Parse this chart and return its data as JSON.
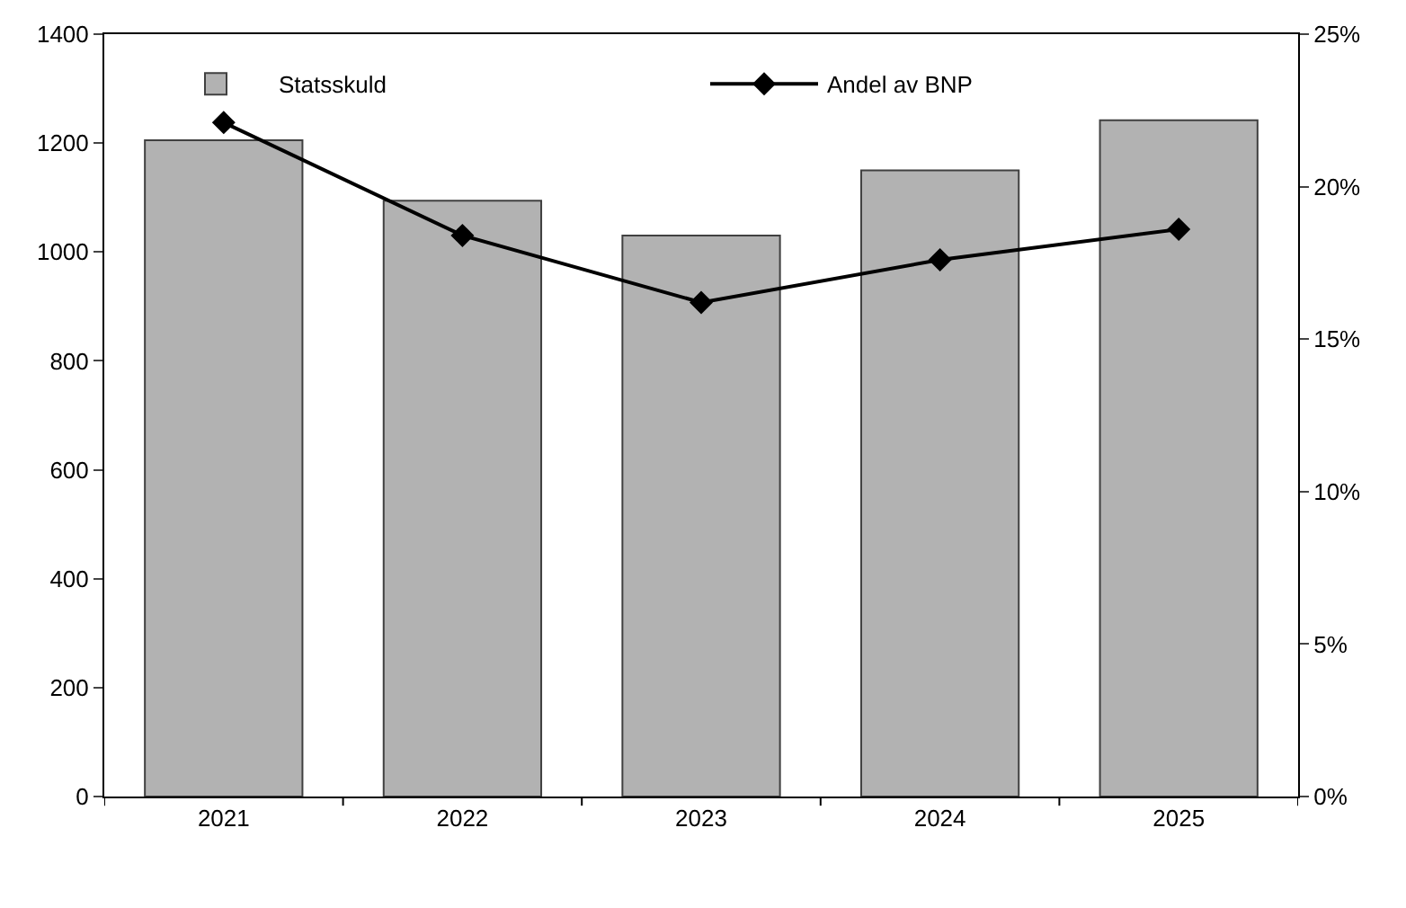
{
  "chart_data": {
    "type": "bar",
    "categories": [
      "2021",
      "2022",
      "2023",
      "2024",
      "2025"
    ],
    "series": [
      {
        "name": "Statsskuld",
        "color": "#b2b2b2",
        "values": [
          1205,
          1094,
          1030,
          1150,
          1242
        ]
      },
      {
        "name": "Andel av BNP",
        "type": "line",
        "axis": "y2",
        "color": "#000000",
        "values": [
          22.1,
          18.4,
          16.2,
          17.6,
          18.6
        ]
      }
    ],
    "ylim": [
      0,
      1400
    ],
    "yticks": [
      0,
      200,
      400,
      600,
      800,
      1000,
      1200,
      1400
    ],
    "y2lim": [
      0,
      25
    ],
    "y2ticks": [
      {
        "value": 0,
        "label": "0%"
      },
      {
        "value": 5,
        "label": "5%"
      },
      {
        "value": 10,
        "label": "10%"
      },
      {
        "value": 15,
        "label": "15%"
      },
      {
        "value": 20,
        "label": "20%"
      },
      {
        "value": 25,
        "label": "25%"
      }
    ],
    "marker": "diamond",
    "legend": "top",
    "grid": false
  }
}
